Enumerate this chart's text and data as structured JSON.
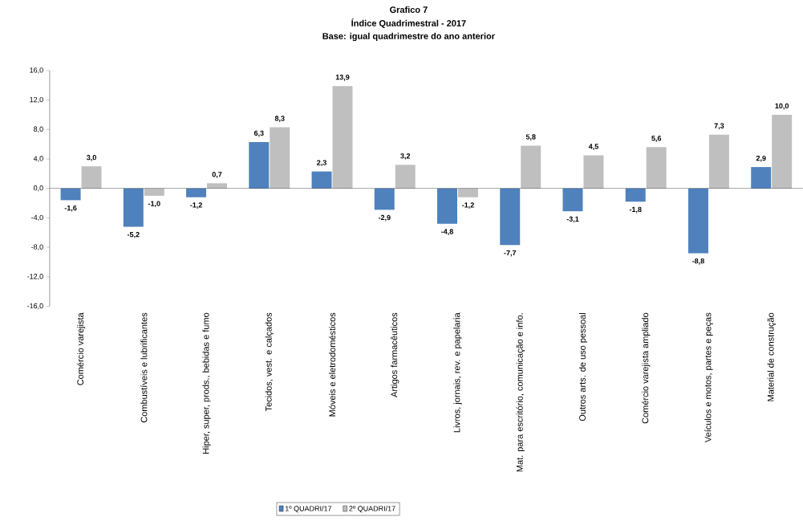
{
  "chart_data": {
    "type": "bar",
    "title": "Grafico 7",
    "subtitle": "Índice Quadrimestral - 2017",
    "annotations": [
      "Base: igual quadrimestre do ano anterior"
    ],
    "categories": [
      "Comércio varejista",
      "Combustíveis e lubrificantes",
      "Hiper, super, prods., bebidas e fumo",
      "Tecidos, vest. e calçados",
      "Móveis e eletrodomésticos",
      "Artigos farmacêuticos",
      "Livros, jornais, rev. e papelaria",
      "Mat. para escritório, comunicação e info.",
      "Outros arts. de uso pessoal",
      "Comércio varejista ampliado",
      "Veículos e motos, partes e peças",
      "Material de construção"
    ],
    "series": [
      {
        "name": "1º QUADRI/17",
        "color": "#4f81bd",
        "values": [
          -1.6,
          -5.2,
          -1.2,
          6.3,
          2.3,
          -2.9,
          -4.8,
          -7.7,
          -3.1,
          -1.8,
          -8.8,
          2.9
        ],
        "value_labels": [
          "-1,6",
          "-5,2",
          "-1,2",
          "6,3",
          "2,3",
          "-2,9",
          "-4,8",
          "-7,7",
          "-3,1",
          "-1,8",
          "-8,8",
          "2,9"
        ]
      },
      {
        "name": "2º QUADRI/17",
        "color": "#bfbfbf",
        "values": [
          3.0,
          -1.0,
          0.7,
          8.3,
          13.9,
          3.2,
          -1.2,
          5.8,
          4.5,
          5.6,
          7.3,
          10.0
        ],
        "value_labels": [
          "3,0",
          "-1,0",
          "0,7",
          "8,3",
          "13,9",
          "3,2",
          "-1,2",
          "5,8",
          "4,5",
          "5,6",
          "7,3",
          "10,0"
        ]
      }
    ],
    "ylim": [
      -16,
      16
    ],
    "yticks": [
      {
        "value": -16,
        "label": "-16,0"
      },
      {
        "value": -12,
        "label": "-12,0"
      },
      {
        "value": -8,
        "label": "-8,0"
      },
      {
        "value": -4,
        "label": "-4,0"
      },
      {
        "value": 0,
        "label": "0,0"
      },
      {
        "value": 4,
        "label": "4,0"
      },
      {
        "value": 8,
        "label": "8,0"
      },
      {
        "value": 12,
        "label": "12,0"
      },
      {
        "value": 16,
        "label": "16,0"
      }
    ],
    "legend": "bottom"
  }
}
